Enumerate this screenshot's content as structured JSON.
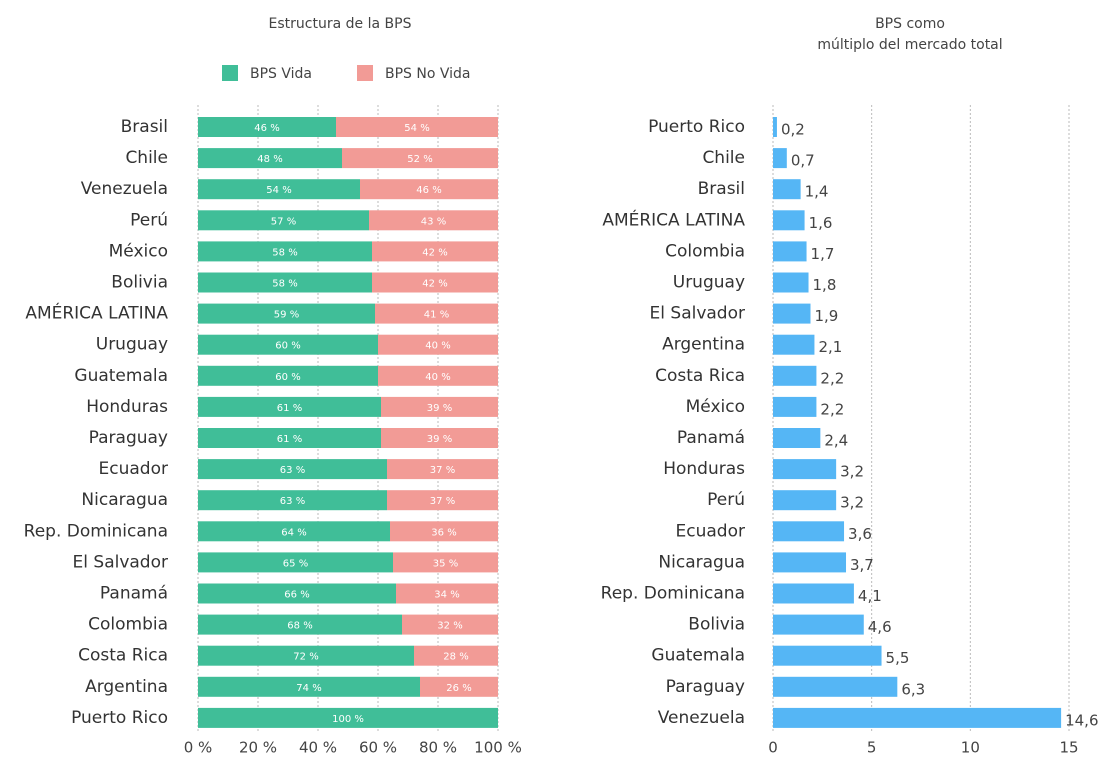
{
  "chart_data": [
    {
      "type": "stacked-bar",
      "title": "Estructura de la BPS",
      "categories": [
        "Brasil",
        "Chile",
        "Venezuela",
        "Perú",
        "México",
        "Bolivia",
        "AMÉRICA LATINA",
        "Uruguay",
        "Guatemala",
        "Honduras",
        "Paraguay",
        "Ecuador",
        "Nicaragua",
        "Rep. Dominicana",
        "El Salvador",
        "Panamá",
        "Colombia",
        "Costa Rica",
        "Argentina",
        "Puerto Rico"
      ],
      "series": [
        {
          "name": "BPS Vida",
          "color": "#40be98",
          "values": [
            46,
            48,
            54,
            57,
            58,
            58,
            59,
            60,
            60,
            61,
            61,
            63,
            63,
            64,
            65,
            66,
            68,
            72,
            74,
            100
          ],
          "value_labels": [
            "46 %",
            "48 %",
            "54 %",
            "57 %",
            "58 %",
            "58 %",
            "59 %",
            "60 %",
            "60 %",
            "61 %",
            "61 %",
            "63 %",
            "63 %",
            "64 %",
            "65 %",
            "66 %",
            "68 %",
            "72 %",
            "74 %",
            "100 %"
          ]
        },
        {
          "name": "BPS No Vida",
          "color": "#f29b96",
          "values": [
            54,
            52,
            46,
            43,
            42,
            42,
            41,
            40,
            40,
            39,
            39,
            37,
            37,
            36,
            35,
            34,
            32,
            28,
            26,
            null
          ],
          "value_labels": [
            "54 %",
            "52 %",
            "46 %",
            "43 %",
            "42 %",
            "42 %",
            "41 %",
            "40 %",
            "40 %",
            "39 %",
            "39 %",
            "37 %",
            "37 %",
            "36 %",
            "35 %",
            "34 %",
            "32 %",
            "28 %",
            "26 %",
            null
          ]
        }
      ],
      "xlim": [
        0,
        100
      ],
      "xticks": [
        {
          "value": 0,
          "label": "0 %"
        },
        {
          "value": 20,
          "label": "20 %"
        },
        {
          "value": 40,
          "label": "40 %"
        },
        {
          "value": 60,
          "label": "60 %"
        },
        {
          "value": 80,
          "label": "80 %"
        },
        {
          "value": 100,
          "label": "100 %"
        }
      ],
      "grid": true,
      "legend": "top"
    },
    {
      "type": "bar",
      "title": [
        "BPS como",
        "múltiplo del mercado total"
      ],
      "categories": [
        "Puerto Rico",
        "Chile",
        "Brasil",
        "AMÉRICA LATINA",
        "Colombia",
        "Uruguay",
        "El Salvador",
        "Argentina",
        "Costa Rica",
        "México",
        "Panamá",
        "Honduras",
        "Perú",
        "Ecuador",
        "Nicaragua",
        "Rep. Dominicana",
        "Bolivia",
        "Guatemala",
        "Paraguay",
        "Venezuela"
      ],
      "values": [
        0.2,
        0.7,
        1.4,
        1.6,
        1.7,
        1.8,
        1.9,
        2.1,
        2.2,
        2.2,
        2.4,
        3.2,
        3.2,
        3.6,
        3.7,
        4.1,
        4.6,
        5.5,
        6.3,
        14.6
      ],
      "value_labels": [
        "0,2",
        "0,7",
        "1,4",
        "1,6",
        "1,7",
        "1,8",
        "1,9",
        "2,1",
        "2,2",
        "2,2",
        "2,4",
        "3,2",
        "3,2",
        "3,6",
        "3,7",
        "4,1",
        "4,6",
        "5,5",
        "6,3",
        "14,6"
      ],
      "color": "#55b6f5",
      "xlim": [
        0,
        15
      ],
      "xticks": [
        0,
        5,
        10,
        15
      ],
      "grid": true
    }
  ]
}
